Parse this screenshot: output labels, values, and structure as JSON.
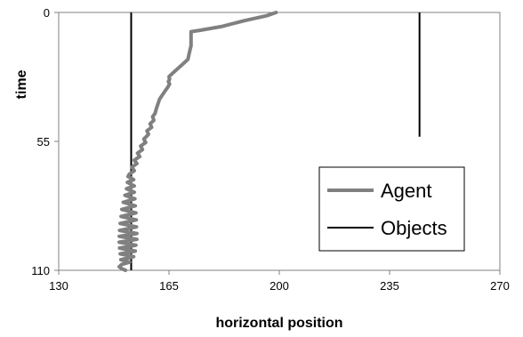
{
  "chart_data": {
    "type": "line",
    "xlabel": "horizontal position",
    "ylabel": "time",
    "xlim": [
      130,
      270
    ],
    "ylim": [
      0,
      110
    ],
    "y_inverted": true,
    "x_ticks": [
      "130",
      "165",
      "200",
      "235",
      "270"
    ],
    "y_ticks": [
      "0",
      "55",
      "110"
    ],
    "grid": false,
    "legend_position": "lower-right",
    "series": [
      {
        "name": "Agent",
        "color": "#808080",
        "points": [
          [
            199.0,
            0
          ],
          [
            196.0,
            1.4
          ],
          [
            189.0,
            3.5
          ],
          [
            182.0,
            5.9
          ],
          [
            175.0,
            7.6
          ],
          [
            172.0,
            8.2
          ],
          [
            172.0,
            11.3
          ],
          [
            172.0,
            14.2
          ],
          [
            171.5,
            17.0
          ],
          [
            171.0,
            20.0
          ],
          [
            169.0,
            22.5
          ],
          [
            166.5,
            25.5
          ],
          [
            165.0,
            27.4
          ],
          [
            165.2,
            28.5
          ],
          [
            164.8,
            29.5
          ],
          [
            165.2,
            30.5
          ],
          [
            164.7,
            31.7
          ],
          [
            163.5,
            34.0
          ],
          [
            162.0,
            37.0
          ],
          [
            161.0,
            41.0
          ],
          [
            160.6,
            43.0
          ],
          [
            159.8,
            44.5
          ],
          [
            160.2,
            46.0
          ],
          [
            159.0,
            47.5
          ],
          [
            159.5,
            49.0
          ],
          [
            158.0,
            50.5
          ],
          [
            158.5,
            52.0
          ],
          [
            157.0,
            54.0
          ],
          [
            157.6,
            55.5
          ],
          [
            156.0,
            57.0
          ],
          [
            156.6,
            58.5
          ],
          [
            155.0,
            60.0
          ],
          [
            155.7,
            61.5
          ],
          [
            154.0,
            63.0
          ],
          [
            154.8,
            64.5
          ],
          [
            153.2,
            66.0
          ],
          [
            154.0,
            67.5
          ],
          [
            152.4,
            69.0
          ],
          [
            152.0,
            70.0
          ],
          [
            153.8,
            71.3
          ],
          [
            151.8,
            72.5
          ],
          [
            154.0,
            74.0
          ],
          [
            151.5,
            75.2
          ],
          [
            154.0,
            76.7
          ],
          [
            151.0,
            78.0
          ],
          [
            154.2,
            79.5
          ],
          [
            150.5,
            81.0
          ],
          [
            154.3,
            82.5
          ],
          [
            150.0,
            84.0
          ],
          [
            154.5,
            85.5
          ],
          [
            149.8,
            87.0
          ],
          [
            154.6,
            88.5
          ],
          [
            149.5,
            90.0
          ],
          [
            154.7,
            91.5
          ],
          [
            149.3,
            93.0
          ],
          [
            154.8,
            94.3
          ],
          [
            149.2,
            95.5
          ],
          [
            154.8,
            96.8
          ],
          [
            149.2,
            98.0
          ],
          [
            154.5,
            99.3
          ],
          [
            149.3,
            100.5
          ],
          [
            154.3,
            101.8
          ],
          [
            149.5,
            103.0
          ],
          [
            153.8,
            104.2
          ],
          [
            149.7,
            105.5
          ],
          [
            152.5,
            106.5
          ],
          [
            150.0,
            107.5
          ],
          [
            149.2,
            108.5
          ],
          [
            150.0,
            109.3
          ],
          [
            151.2,
            110.0
          ]
        ]
      },
      {
        "name": "Objects",
        "color": "#000000",
        "segments": [
          {
            "x": 153.0,
            "y_start": 0,
            "y_end": 110
          },
          {
            "x": 244.5,
            "y_start": 0,
            "y_end": 53
          }
        ]
      }
    ]
  }
}
